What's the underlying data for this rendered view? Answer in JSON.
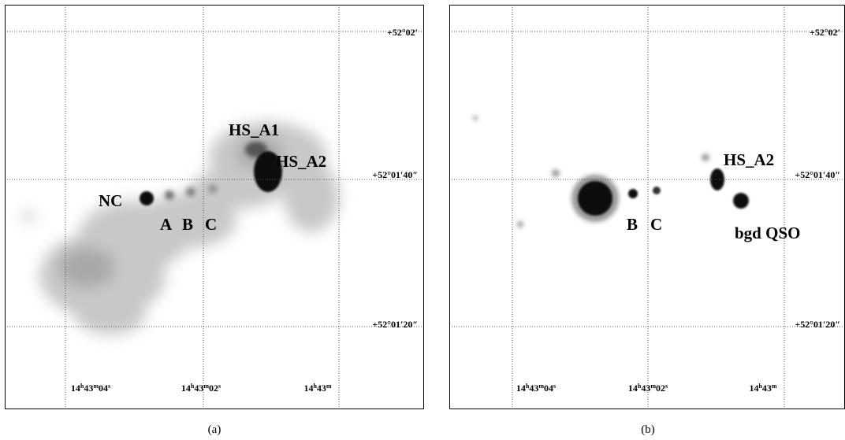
{
  "panels": [
    {
      "labels": [
        "HS_A1",
        "HS_A2",
        "NC",
        "A",
        "B",
        "C"
      ],
      "ra_labels": [
        [
          "14",
          "h",
          "43",
          "m",
          "04",
          "s"
        ],
        [
          "14",
          "h",
          "43",
          "m",
          "02",
          "s"
        ],
        [
          "14",
          "h",
          "43",
          "m"
        ]
      ],
      "dec_labels": [
        "+52°02′",
        "+52°01′40″",
        "+52°01′20″"
      ],
      "caption": "(a)"
    },
    {
      "labels": [
        "HS_A2",
        "B",
        "C",
        "bgd QSO"
      ],
      "ra_labels": [
        [
          "14",
          "h",
          "43",
          "m",
          "04",
          "s"
        ],
        [
          "14",
          "h",
          "43",
          "m",
          "02",
          "s"
        ],
        [
          "14",
          "h",
          "43",
          "m"
        ]
      ],
      "dec_labels": [
        "+52°02′",
        "+52°01′40″",
        "+52°01′20″"
      ],
      "caption": "(b)"
    }
  ]
}
